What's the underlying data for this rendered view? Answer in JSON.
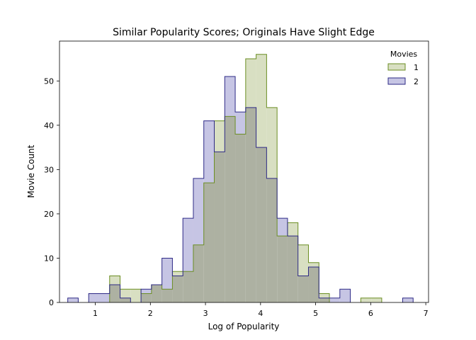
{
  "chart_data": {
    "type": "histogram",
    "title": "Similar Popularity Scores; Originals Have Slight Edge",
    "xlabel": "Log of Popularity",
    "ylabel": "Movie Count",
    "xlim": [
      0.35,
      7.05
    ],
    "ylim": [
      0,
      59
    ],
    "xticks": [
      1,
      2,
      3,
      4,
      5,
      6,
      7
    ],
    "yticks": [
      0,
      10,
      20,
      30,
      40,
      50
    ],
    "grid": false,
    "legend": {
      "title": "Movies",
      "position": "top-right"
    },
    "bin_edges": [
      0.5,
      0.69,
      0.88,
      1.07,
      1.26,
      1.45,
      1.64,
      1.83,
      2.02,
      2.21,
      2.4,
      2.59,
      2.78,
      2.97,
      3.16,
      3.35,
      3.54,
      3.73,
      3.92,
      4.11,
      4.3,
      4.49,
      4.68,
      4.87,
      5.06,
      5.25,
      5.44,
      5.63,
      5.82,
      6.01,
      6.2,
      6.39,
      6.58,
      6.77
    ],
    "series": [
      {
        "name": "1",
        "fill": "#d8dfc2",
        "stroke": "#6b8e23",
        "counts": [
          0,
          0,
          0,
          0,
          6,
          3,
          3,
          2,
          4,
          3,
          7,
          7,
          13,
          27,
          41,
          42,
          38,
          55,
          56,
          44,
          15,
          18,
          13,
          9,
          2,
          0,
          0,
          0,
          1,
          1,
          0,
          0,
          0
        ]
      },
      {
        "name": "2",
        "fill": "#c6c5e4",
        "stroke": "#2e2a86",
        "counts": [
          1,
          0,
          2,
          2,
          4,
          1,
          0,
          3,
          4,
          10,
          6,
          19,
          28,
          41,
          34,
          51,
          43,
          44,
          35,
          28,
          19,
          15,
          6,
          8,
          1,
          1,
          3,
          0,
          0,
          0,
          0,
          0,
          1
        ]
      }
    ],
    "overlap_fill": "#adb1a2"
  }
}
